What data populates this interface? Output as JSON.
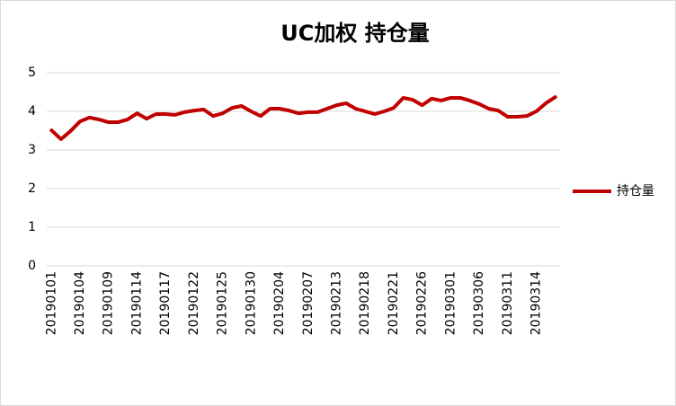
{
  "chart_data": {
    "type": "line",
    "title": "UC加权 持仓量",
    "categories": [
      "20190101",
      null,
      null,
      "20190104",
      null,
      null,
      "20190109",
      null,
      null,
      "20190114",
      null,
      null,
      "20190117",
      null,
      null,
      "20190122",
      null,
      null,
      "20190125",
      null,
      null,
      "20190130",
      null,
      null,
      "20190204",
      null,
      null,
      "20190207",
      null,
      null,
      "20190213",
      null,
      null,
      "20190218",
      null,
      null,
      "20190221",
      null,
      null,
      "20190226",
      null,
      null,
      "20190301",
      null,
      null,
      "20190306",
      null,
      null,
      "20190311",
      null,
      null,
      "20190314",
      null,
      null
    ],
    "series": [
      {
        "name": "持仓量",
        "color": "#c00000",
        "values": [
          3.51,
          3.28,
          3.49,
          3.74,
          3.84,
          3.79,
          3.72,
          3.72,
          3.79,
          3.95,
          3.81,
          3.93,
          3.93,
          3.91,
          3.98,
          4.02,
          4.05,
          3.88,
          3.95,
          4.09,
          4.14,
          4.0,
          3.88,
          4.07,
          4.07,
          4.02,
          3.95,
          3.98,
          3.98,
          4.07,
          4.16,
          4.21,
          4.07,
          4.0,
          3.93,
          4.0,
          4.09,
          4.35,
          4.3,
          4.16,
          4.33,
          4.28,
          4.35,
          4.35,
          4.28,
          4.19,
          4.07,
          4.02,
          3.86,
          3.86,
          3.88,
          4.0,
          4.21,
          4.37
        ]
      }
    ],
    "ylim": [
      0,
      5
    ],
    "yticks": [
      0,
      1,
      2,
      3,
      4,
      5
    ],
    "grid": true,
    "legend": "right"
  }
}
